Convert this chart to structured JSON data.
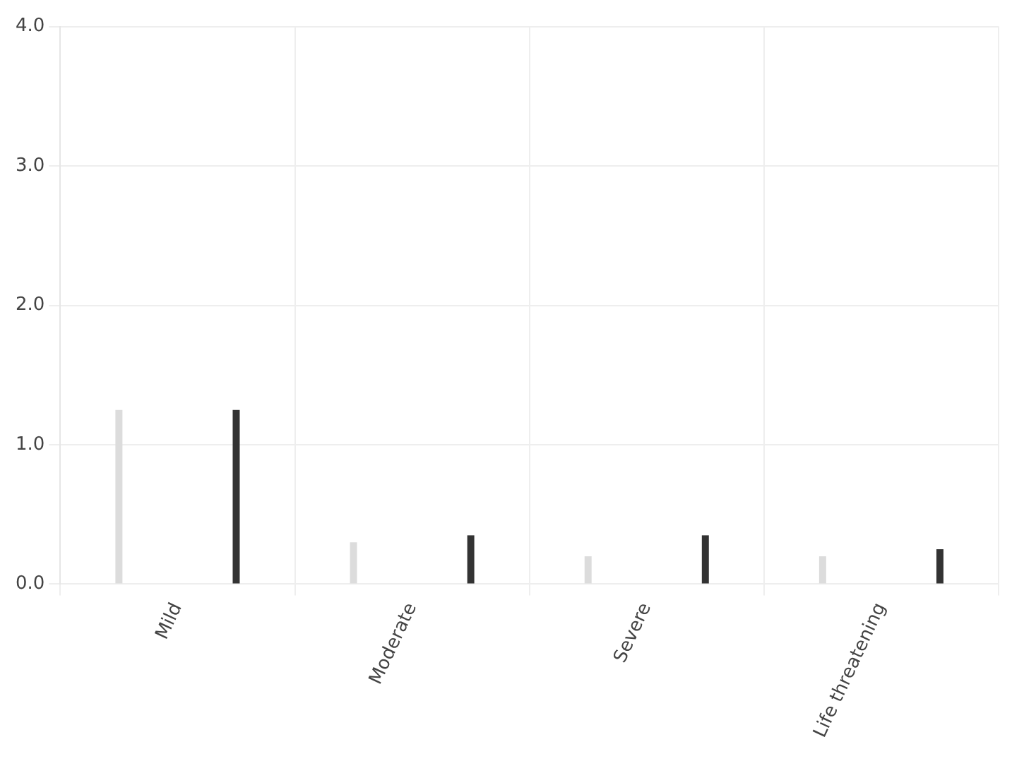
{
  "chart_data": {
    "type": "bar",
    "categories": [
      "Mild",
      "Moderate",
      "Severe",
      "Life threatening"
    ],
    "series": [
      {
        "color": "#dcdcdc",
        "values": [
          1.25,
          0.3,
          0.2,
          0.2
        ]
      },
      {
        "color": "#333333",
        "values": [
          1.25,
          0.35,
          0.35,
          0.25
        ]
      }
    ],
    "ylim": [
      0,
      4
    ],
    "yticks": [
      {
        "value": 0,
        "label": "0.0"
      },
      {
        "value": 1,
        "label": "1.0"
      },
      {
        "value": 2,
        "label": "2.0"
      },
      {
        "value": 3,
        "label": "3.0"
      },
      {
        "value": 4,
        "label": "4.0"
      }
    ],
    "grid": true,
    "legend": false
  }
}
